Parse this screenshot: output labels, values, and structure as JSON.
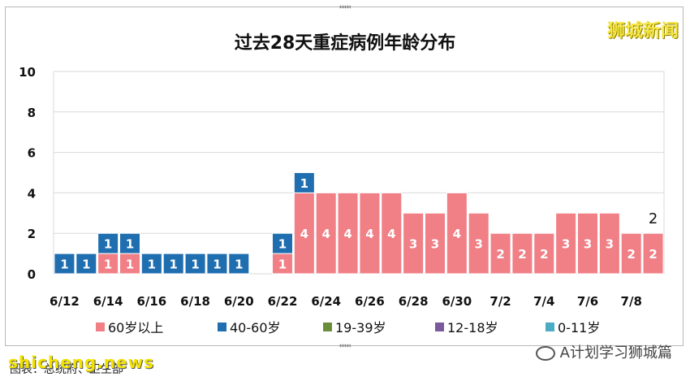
{
  "watermark": "狮城新闻",
  "source": "图表：总统府、卫生部",
  "site_mark": "shicheng.news",
  "account": "A计划学习狮城篇",
  "colors": {
    "s60plus": "#f07f86",
    "s40_60": "#1f6eb0",
    "s19_39": "#6b8e3a",
    "s12_18": "#7a5a9a",
    "s0_11": "#4bacc6"
  },
  "chart_data": {
    "type": "bar",
    "stacked": true,
    "title": "过去28天重症病例年龄分布",
    "ylim": [
      0,
      10
    ],
    "yticks": [
      0,
      2,
      4,
      6,
      8,
      10
    ],
    "grid": true,
    "legend_position": "bottom",
    "categories": [
      "6/12",
      "6/13",
      "6/14",
      "6/15",
      "6/16",
      "6/17",
      "6/18",
      "6/19",
      "6/20",
      "6/21",
      "6/22",
      "6/23",
      "6/24",
      "6/25",
      "6/26",
      "6/27",
      "6/28",
      "6/29",
      "6/30",
      "7/1",
      "7/2",
      "7/3",
      "7/4",
      "7/5",
      "7/6",
      "7/7",
      "7/8",
      "7/9"
    ],
    "tick_labels": [
      "6/12",
      "6/14",
      "6/16",
      "6/18",
      "6/20",
      "6/22",
      "6/24",
      "6/26",
      "6/28",
      "6/30",
      "7/2",
      "7/4",
      "7/6",
      "7/8"
    ],
    "series": [
      {
        "name": "60岁以上",
        "color_key": "s60plus",
        "values": [
          0,
          0,
          1,
          1,
          0,
          0,
          0,
          0,
          0,
          0,
          1,
          4,
          4,
          4,
          4,
          4,
          3,
          3,
          4,
          3,
          2,
          2,
          2,
          3,
          3,
          3,
          2,
          2
        ]
      },
      {
        "name": "40-60岁",
        "color_key": "s40_60",
        "values": [
          1,
          1,
          1,
          1,
          1,
          1,
          1,
          1,
          1,
          0,
          1,
          1,
          0,
          0,
          0,
          0,
          0,
          0,
          0,
          0,
          0,
          0,
          0,
          0,
          0,
          0,
          0,
          0
        ]
      },
      {
        "name": "19-39岁",
        "color_key": "s19_39",
        "values": [
          0,
          0,
          0,
          0,
          0,
          0,
          0,
          0,
          0,
          0,
          0,
          0,
          0,
          0,
          0,
          0,
          0,
          0,
          0,
          0,
          0,
          0,
          0,
          0,
          0,
          0,
          0,
          0
        ]
      },
      {
        "name": "12-18岁",
        "color_key": "s12_18",
        "values": [
          0,
          0,
          0,
          0,
          0,
          0,
          0,
          0,
          0,
          0,
          0,
          0,
          0,
          0,
          0,
          0,
          0,
          0,
          0,
          0,
          0,
          0,
          0,
          0,
          0,
          0,
          0,
          0
        ]
      },
      {
        "name": "0-11岁",
        "color_key": "s0_11",
        "values": [
          0,
          0,
          0,
          0,
          0,
          0,
          0,
          0,
          0,
          0,
          0,
          0,
          0,
          0,
          0,
          0,
          0,
          0,
          0,
          0,
          0,
          0,
          0,
          0,
          0,
          0,
          0,
          0
        ]
      }
    ],
    "annotations": [
      {
        "category": "7/9",
        "text": "2"
      }
    ]
  }
}
